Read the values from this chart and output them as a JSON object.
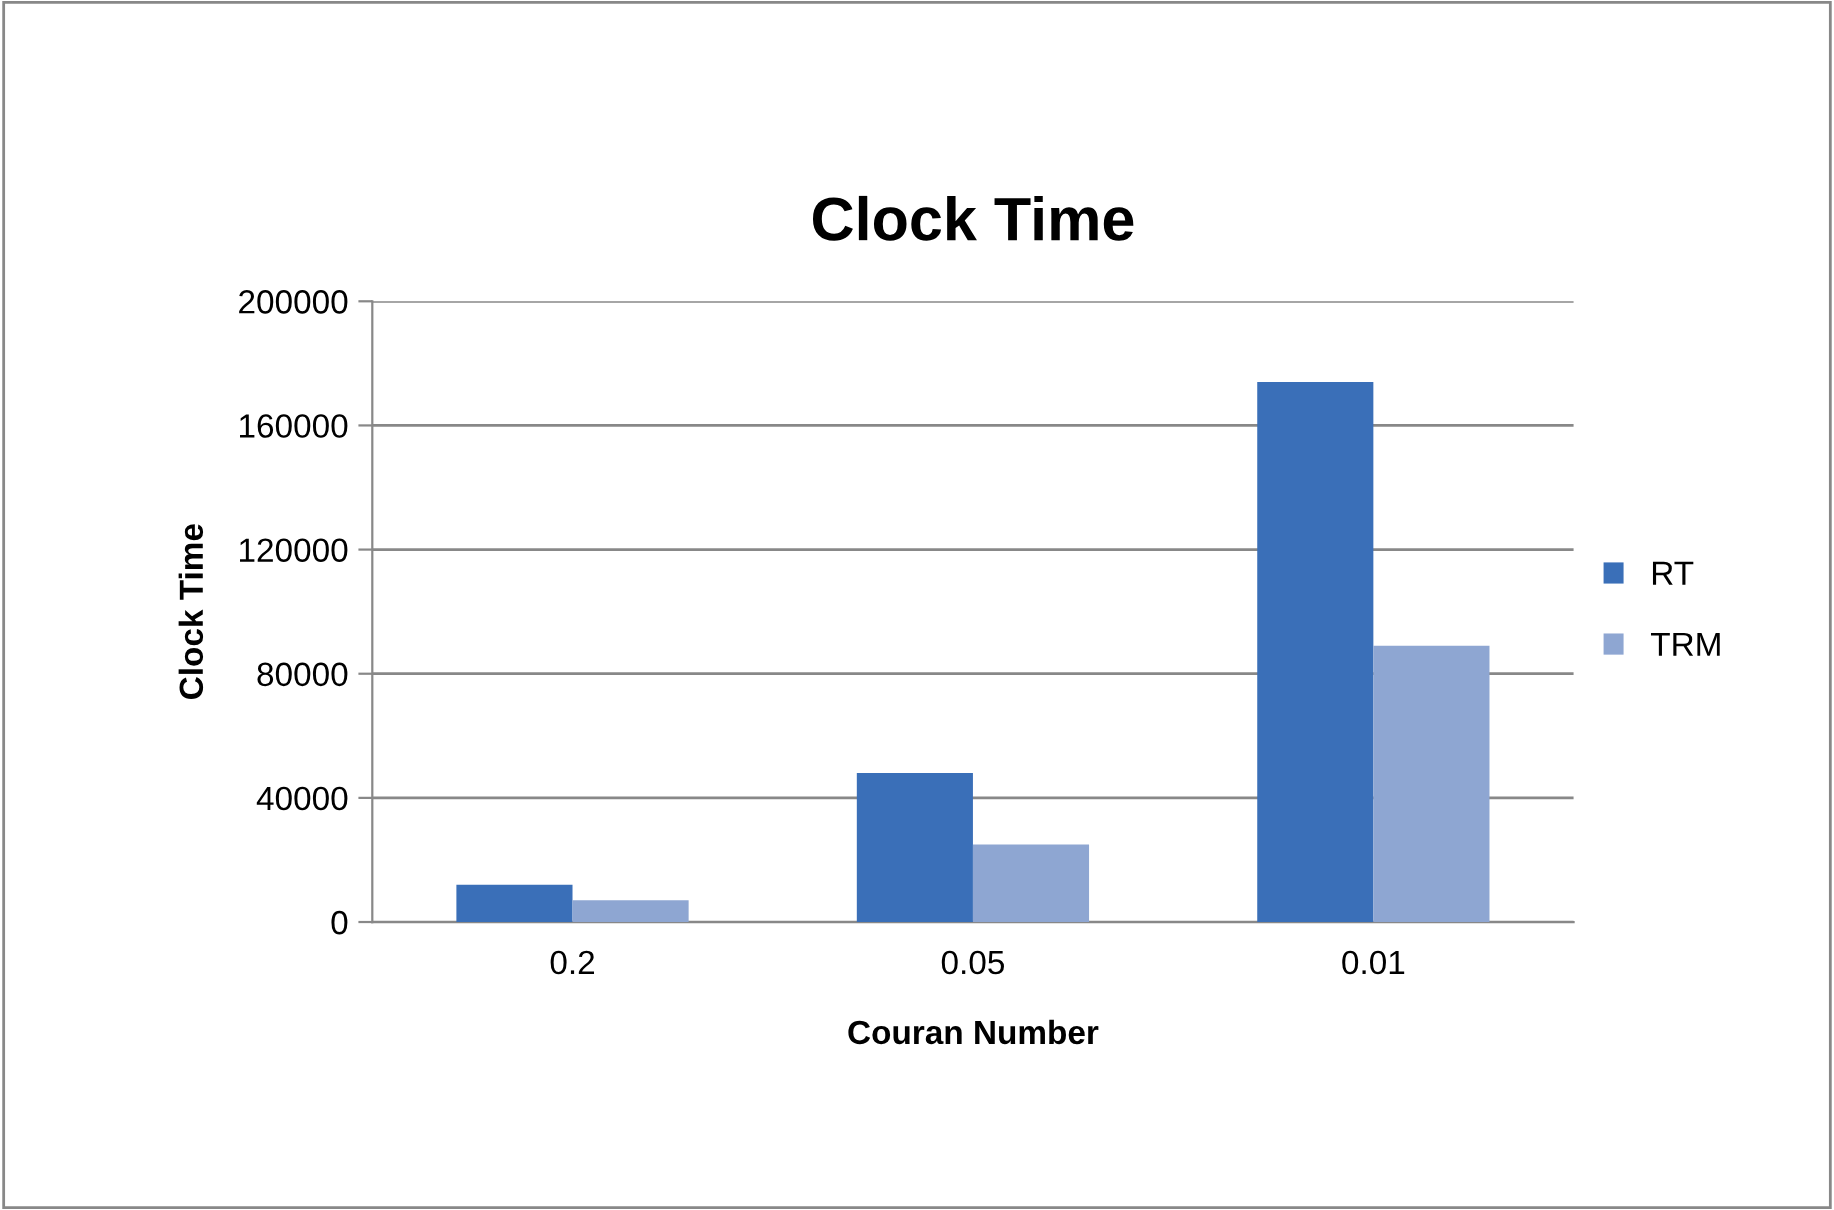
{
  "chart_data": {
    "type": "bar",
    "title": "Clock Time",
    "xlabel": "Couran Number",
    "ylabel": "Clock Time",
    "categories": [
      "0.2",
      "0.05",
      "0.01"
    ],
    "series": [
      {
        "name": "RT",
        "color": "#3a6fb8",
        "values": [
          12000,
          48000,
          174000
        ]
      },
      {
        "name": "TRM",
        "color": "#8ea6d2",
        "values": [
          7000,
          25000,
          89000
        ]
      }
    ],
    "ylim": [
      0,
      200000
    ],
    "yticks": [
      0,
      40000,
      80000,
      120000,
      160000,
      200000
    ],
    "grid": "y",
    "legend": "right"
  }
}
